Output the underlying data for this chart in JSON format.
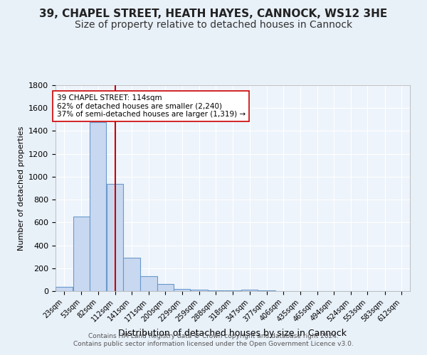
{
  "title": "39, CHAPEL STREET, HEATH HAYES, CANNOCK, WS12 3HE",
  "subtitle": "Size of property relative to detached houses in Cannock",
  "xlabel": "Distribution of detached houses by size in Cannock",
  "ylabel": "Number of detached properties",
  "footer_line1": "Contains HM Land Registry data © Crown copyright and database right 2024.",
  "footer_line2": "Contains public sector information licensed under the Open Government Licence v3.0.",
  "bin_edges": [
    8,
    38,
    67,
    97,
    126,
    156,
    185,
    214,
    244,
    273,
    303,
    332,
    362,
    391,
    421,
    450,
    479,
    509,
    538,
    568,
    597,
    627
  ],
  "bar_heights": [
    40,
    650,
    1480,
    940,
    290,
    130,
    60,
    20,
    10,
    5,
    5,
    15,
    5,
    0,
    0,
    0,
    0,
    0,
    0,
    0,
    0
  ],
  "bar_color": "#c8d8f0",
  "bar_edgecolor": "#6899cc",
  "tick_labels": [
    "23sqm",
    "53sqm",
    "82sqm",
    "112sqm",
    "141sqm",
    "171sqm",
    "200sqm",
    "229sqm",
    "259sqm",
    "288sqm",
    "318sqm",
    "347sqm",
    "377sqm",
    "406sqm",
    "435sqm",
    "465sqm",
    "494sqm",
    "524sqm",
    "553sqm",
    "583sqm",
    "612sqm"
  ],
  "vline_x": 112,
  "vline_color": "#cc0000",
  "annotation_line1": "39 CHAPEL STREET: 114sqm",
  "annotation_line2": "62% of detached houses are smaller (2,240)",
  "annotation_line3": "37% of semi-detached houses are larger (1,319) →",
  "annotation_box_edgecolor": "#cc0000",
  "annotation_box_facecolor": "#ffffff",
  "ylim": [
    0,
    1800
  ],
  "yticks": [
    0,
    200,
    400,
    600,
    800,
    1000,
    1200,
    1400,
    1600,
    1800
  ],
  "bg_color": "#e8f0f8",
  "plot_bg_color": "#eef4fb",
  "grid_color": "#ffffff",
  "title_fontsize": 11,
  "subtitle_fontsize": 10
}
